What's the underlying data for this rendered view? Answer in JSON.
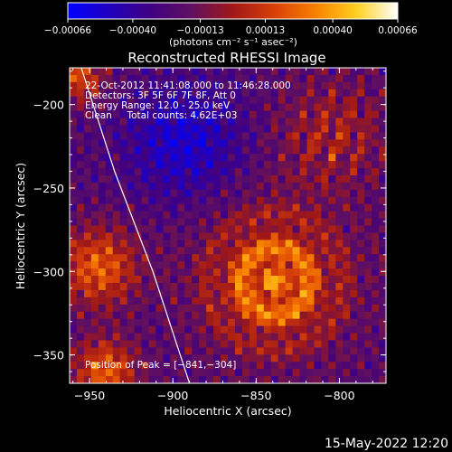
{
  "chart_data": {
    "type": "heatmap",
    "title": "Reconstructed RHESSI Image",
    "xlabel": "Heliocentric X (arcsec)",
    "ylabel": "Heliocentric Y (arcsec)",
    "xlim": [
      -962,
      -772
    ],
    "ylim": [
      -367,
      -178
    ],
    "x_ticks": [
      -950,
      -900,
      -850,
      -800
    ],
    "y_ticks": [
      -200,
      -250,
      -300,
      -350
    ],
    "x_tick_labels": [
      "−950",
      "−900",
      "−850",
      "−800"
    ],
    "y_tick_labels": [
      "−200",
      "−250",
      "−300",
      "−350"
    ],
    "colorbar": {
      "range": [
        -0.00066,
        0.00066
      ],
      "ticks": [
        -0.00066,
        -0.0004,
        -0.00013,
        0.00013,
        0.0004,
        0.00066
      ],
      "tick_labels": [
        "−0.00066",
        "−0.00040",
        "−0.00013",
        "0.00013",
        "0.00040",
        "0.00066"
      ],
      "unit_label": "(photons cm⁻² s⁻¹ asec⁻²)",
      "colormap": [
        "#0000ff",
        "#2000c0",
        "#400080",
        "#601060",
        "#a01818",
        "#d84008",
        "#f88000",
        "#ffd020",
        "#ffffff"
      ]
    },
    "annotations": [
      "22-Oct-2012 11:41:08.000 to 11:46:28.000",
      "Detectors: 3F 5F 6F 7F 8F, Att 0",
      "Energy Range: 12.0 - 25.0 keV",
      "Clean     Total counts: 4.62E+03"
    ],
    "peak_label": "Position of Peak = [−841,−304]",
    "peak": [
      -841,
      -304
    ],
    "limb": [
      [
        -955,
        -178
      ],
      [
        -935,
        -240
      ],
      [
        -912,
        -300
      ],
      [
        -890,
        -367
      ]
    ],
    "grid": false
  },
  "footer": {
    "timestamp": "15-May-2022 12:20"
  }
}
